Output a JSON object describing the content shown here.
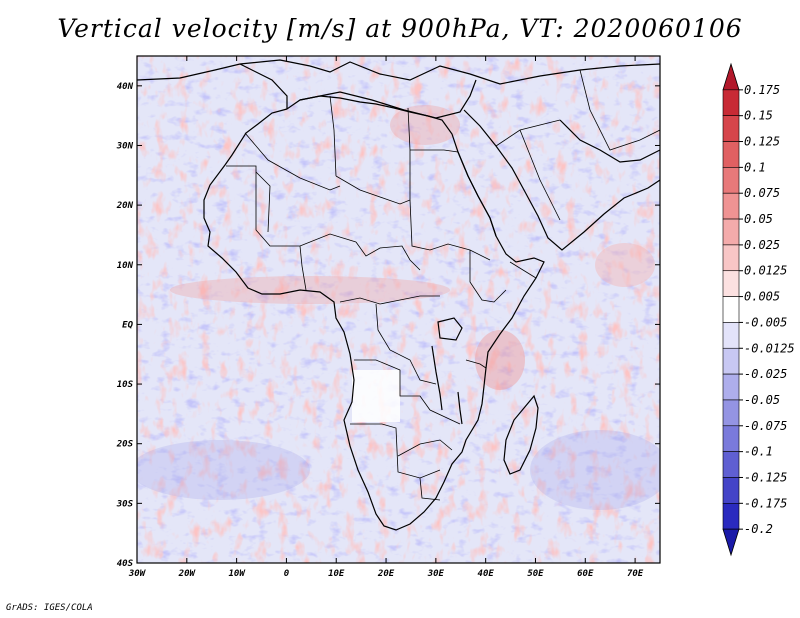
{
  "title": "Vertical velocity [m/s] at 900hPa, VT: 2020060106",
  "credit": "GrADS: IGES/COLA",
  "map": {
    "lon_range": [
      -30,
      75
    ],
    "lat_range": [
      -40,
      45
    ],
    "lat_ticks": [
      {
        "value": 40,
        "label": "40N"
      },
      {
        "value": 30,
        "label": "30N"
      },
      {
        "value": 20,
        "label": "20N"
      },
      {
        "value": 10,
        "label": "10N"
      },
      {
        "value": 0,
        "label": "EQ"
      },
      {
        "value": -10,
        "label": "10S"
      },
      {
        "value": -20,
        "label": "20S"
      },
      {
        "value": -30,
        "label": "30S"
      },
      {
        "value": -40,
        "label": "40S"
      }
    ],
    "lon_ticks": [
      {
        "value": -30,
        "label": "30W"
      },
      {
        "value": -20,
        "label": "20W"
      },
      {
        "value": -10,
        "label": "10W"
      },
      {
        "value": 0,
        "label": "0"
      },
      {
        "value": 10,
        "label": "10E"
      },
      {
        "value": 20,
        "label": "20E"
      },
      {
        "value": 30,
        "label": "30E"
      },
      {
        "value": 40,
        "label": "40E"
      },
      {
        "value": 50,
        "label": "50E"
      },
      {
        "value": 60,
        "label": "60E"
      },
      {
        "value": 70,
        "label": "70E"
      }
    ]
  },
  "colorbar": {
    "levels": [
      "0.175",
      "0.15",
      "0.125",
      "0.1",
      "0.075",
      "0.05",
      "0.025",
      "0.0125",
      "0.005",
      "-0.005",
      "-0.0125",
      "-0.025",
      "-0.05",
      "-0.075",
      "-0.1",
      "-0.125",
      "-0.175",
      "-0.2"
    ],
    "colors": [
      "#b2182b",
      "#c82a35",
      "#d6454b",
      "#e06062",
      "#e8797a",
      "#ef9393",
      "#f4abab",
      "#f8c6c6",
      "#fce1e1",
      "#ffffff",
      "#e3e3fa",
      "#c8c8f3",
      "#aeaeec",
      "#9494e3",
      "#7a7adb",
      "#5f5fd2",
      "#4444c8",
      "#2a2abf",
      "#1a1aa8"
    ]
  }
}
